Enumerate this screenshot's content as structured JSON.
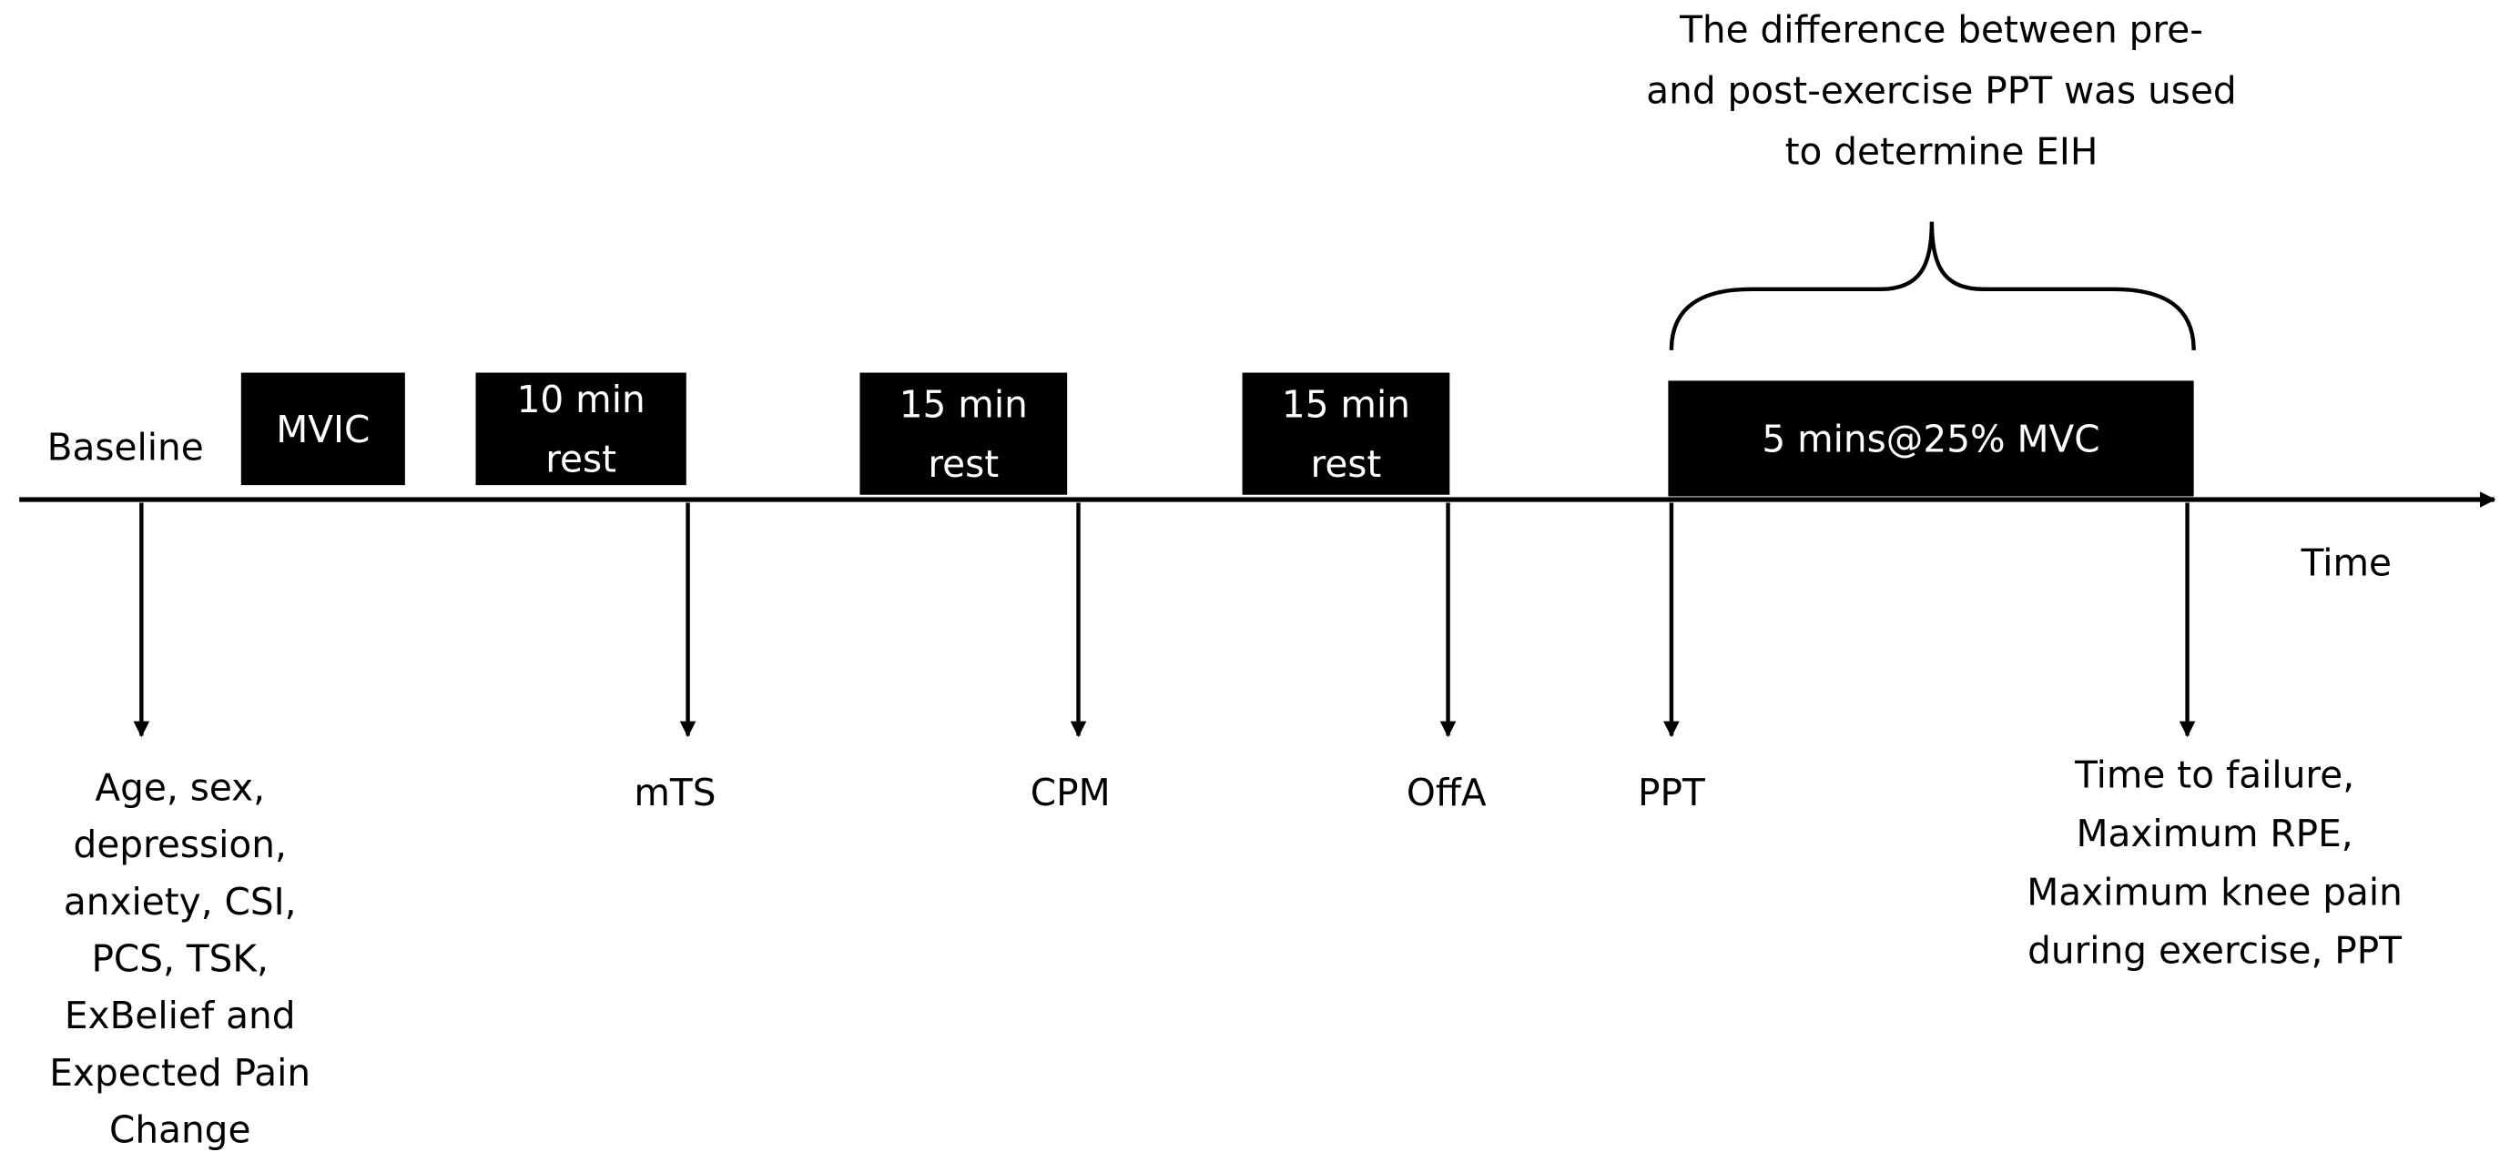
{
  "baseline_label": "Baseline",
  "time_label": "Time",
  "boxes": [
    {
      "lines": [
        "MVIC"
      ]
    },
    {
      "lines": [
        "10 min",
        "rest"
      ]
    },
    {
      "lines": [
        "15 min",
        "rest"
      ]
    },
    {
      "lines": [
        "15 min",
        "rest"
      ]
    },
    {
      "lines": [
        "5 mins@25% MVC"
      ]
    }
  ],
  "markers": [
    {
      "lines": [
        "Age, sex,",
        "depression,",
        "anxiety, CSI,",
        "PCS, TSK,",
        "ExBelief and",
        "Expected Pain",
        "Change"
      ]
    },
    {
      "lines": [
        "mTS"
      ]
    },
    {
      "lines": [
        "CPM"
      ]
    },
    {
      "lines": [
        "OffA"
      ]
    },
    {
      "lines": [
        "PPT"
      ]
    },
    {
      "lines": [
        "Time to failure,",
        "Maximum RPE,",
        "Maximum knee pain",
        "during exercise, PPT"
      ]
    }
  ],
  "note": {
    "lines": [
      "The difference between pre-",
      "and post-exercise PPT was used",
      "to determine EIH"
    ]
  }
}
